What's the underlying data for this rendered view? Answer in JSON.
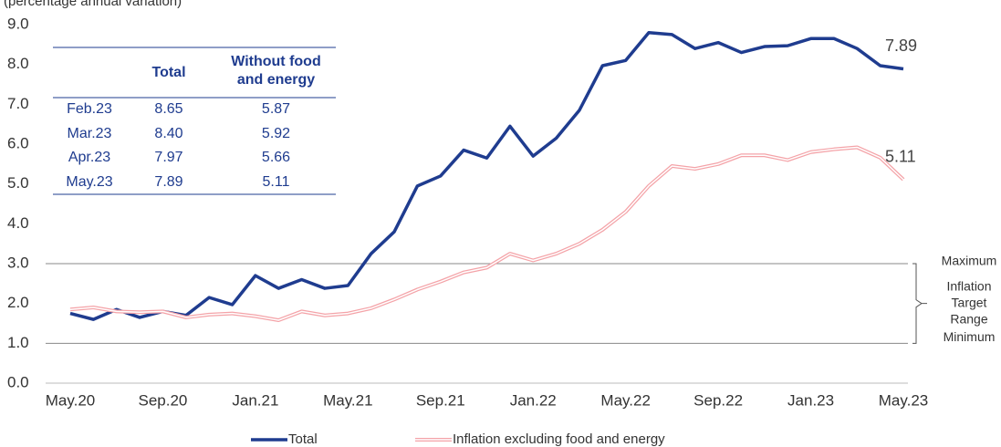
{
  "chart_data": {
    "type": "line",
    "subtitle": "(percentage annual variation)",
    "categories": [
      "May.20",
      null,
      null,
      null,
      "Sep.20",
      null,
      null,
      null,
      "Jan.21",
      null,
      null,
      null,
      "May.21",
      null,
      null,
      null,
      "Sep.21",
      null,
      null,
      null,
      "Jan.22",
      null,
      null,
      null,
      "May.22",
      null,
      null,
      null,
      "Sep.22",
      null,
      null,
      null,
      "Jan.23",
      null,
      null,
      null,
      "May.23"
    ],
    "series": [
      {
        "name": "Total",
        "color": "#1f3c8f",
        "values": [
          1.75,
          1.6,
          1.85,
          1.65,
          1.8,
          1.7,
          2.15,
          1.97,
          2.7,
          2.38,
          2.6,
          2.38,
          2.45,
          3.25,
          3.8,
          4.95,
          5.2,
          5.85,
          5.65,
          6.45,
          5.7,
          6.15,
          6.85,
          7.97,
          8.1,
          8.8,
          8.75,
          8.4,
          8.55,
          8.3,
          8.45,
          8.47,
          8.65,
          8.65,
          8.4,
          7.97,
          7.89
        ],
        "value_labels": [
          null,
          null,
          null,
          null,
          null,
          null,
          null,
          null,
          null,
          null,
          null,
          null,
          null,
          null,
          null,
          null,
          null,
          null,
          null,
          null,
          null,
          null,
          null,
          null,
          null,
          null,
          null,
          null,
          null,
          null,
          null,
          null,
          null,
          null,
          null,
          null,
          "7.89"
        ]
      },
      {
        "name": "Inflation excluding food and energy",
        "color": "#f4a3a8",
        "values": [
          1.85,
          1.9,
          1.8,
          1.78,
          1.8,
          1.65,
          1.72,
          1.75,
          1.68,
          1.58,
          1.8,
          1.7,
          1.75,
          1.88,
          2.1,
          2.35,
          2.55,
          2.78,
          2.9,
          3.25,
          3.08,
          3.25,
          3.5,
          3.85,
          4.3,
          4.95,
          5.45,
          5.38,
          5.5,
          5.72,
          5.72,
          5.6,
          5.8,
          5.87,
          5.92,
          5.66,
          5.11
        ],
        "value_labels": [
          null,
          null,
          null,
          null,
          null,
          null,
          null,
          null,
          null,
          null,
          null,
          null,
          null,
          null,
          null,
          null,
          null,
          null,
          null,
          null,
          null,
          null,
          null,
          null,
          null,
          null,
          null,
          null,
          null,
          null,
          null,
          null,
          null,
          null,
          null,
          null,
          "5.11"
        ]
      }
    ],
    "ylim": [
      0,
      9
    ],
    "yticks": [
      {
        "value": 0,
        "label": "0.0"
      },
      {
        "value": 1,
        "label": "1.0"
      },
      {
        "value": 2,
        "label": "2.0"
      },
      {
        "value": 3,
        "label": "3.0"
      },
      {
        "value": 4,
        "label": "4.0"
      },
      {
        "value": 5,
        "label": "5.0"
      },
      {
        "value": 6,
        "label": "6.0"
      },
      {
        "value": 7,
        "label": "7.0"
      },
      {
        "value": 8,
        "label": "8.0"
      },
      {
        "value": 9,
        "label": "9.0"
      }
    ],
    "grid": false,
    "legend": "bottom",
    "target_range": {
      "min": 1,
      "max": 3,
      "max_label": "Maximum",
      "min_label": "Minimum",
      "label_lines": [
        "Inflation",
        "Target",
        "Range"
      ]
    },
    "table": {
      "columns": [
        "Total",
        "Without food and energy"
      ],
      "rows": [
        [
          "Feb.23",
          "8.65",
          "5.87"
        ],
        [
          "Mar.23",
          "8.40",
          "5.92"
        ],
        [
          "Apr.23",
          "7.97",
          "5.66"
        ],
        [
          "May.23",
          "7.89",
          "5.11"
        ]
      ]
    }
  }
}
